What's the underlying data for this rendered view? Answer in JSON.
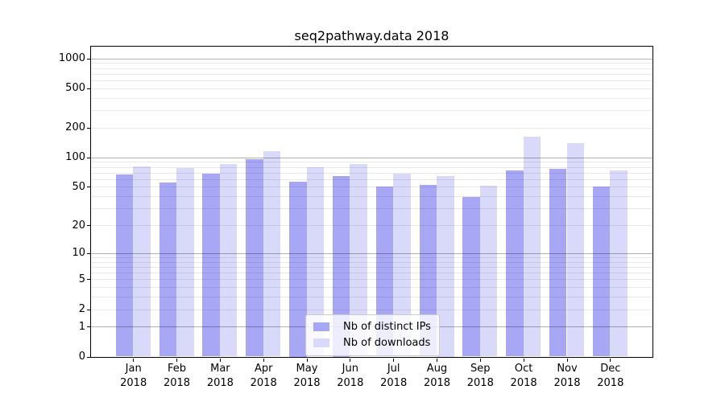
{
  "chart_data": {
    "type": "bar",
    "title": "seq2pathway.data 2018",
    "categories": [
      "Jan",
      "Feb",
      "Mar",
      "Apr",
      "May",
      "Jun",
      "Jul",
      "Aug",
      "Sep",
      "Oct",
      "Nov",
      "Dec"
    ],
    "xtick_year": "2018",
    "series": [
      {
        "name": "Nb of distinct IPs",
        "color": "#a7a7f6",
        "values": [
          67,
          55,
          68,
          95,
          57,
          65,
          50,
          52,
          39,
          74,
          76,
          50
        ]
      },
      {
        "name": "Nb of downloads",
        "color": "#d9d9fa",
        "values": [
          81,
          78,
          85,
          116,
          79,
          86,
          68,
          65,
          51,
          161,
          140,
          74
        ]
      }
    ],
    "yscale": "log1p",
    "yticks": [
      0,
      1,
      2,
      5,
      10,
      20,
      50,
      100,
      200,
      500,
      1000
    ],
    "ylim": [
      0,
      1300
    ],
    "grid": {
      "on": true,
      "major": [
        1,
        10,
        100,
        1000
      ],
      "minor": [
        2,
        3,
        4,
        5,
        6,
        7,
        8,
        9,
        20,
        30,
        40,
        50,
        60,
        70,
        80,
        90,
        200,
        300,
        400,
        500,
        600,
        700,
        800,
        900
      ]
    },
    "legend": {
      "position": "lower-center-inside",
      "entries": [
        "Nb of distinct IPs",
        "Nb of downloads"
      ]
    },
    "colors": {
      "axis": "#000000",
      "grid_major": "#b3b3b3",
      "grid_minor": "#ebebeb",
      "background": "#ffffff"
    }
  }
}
